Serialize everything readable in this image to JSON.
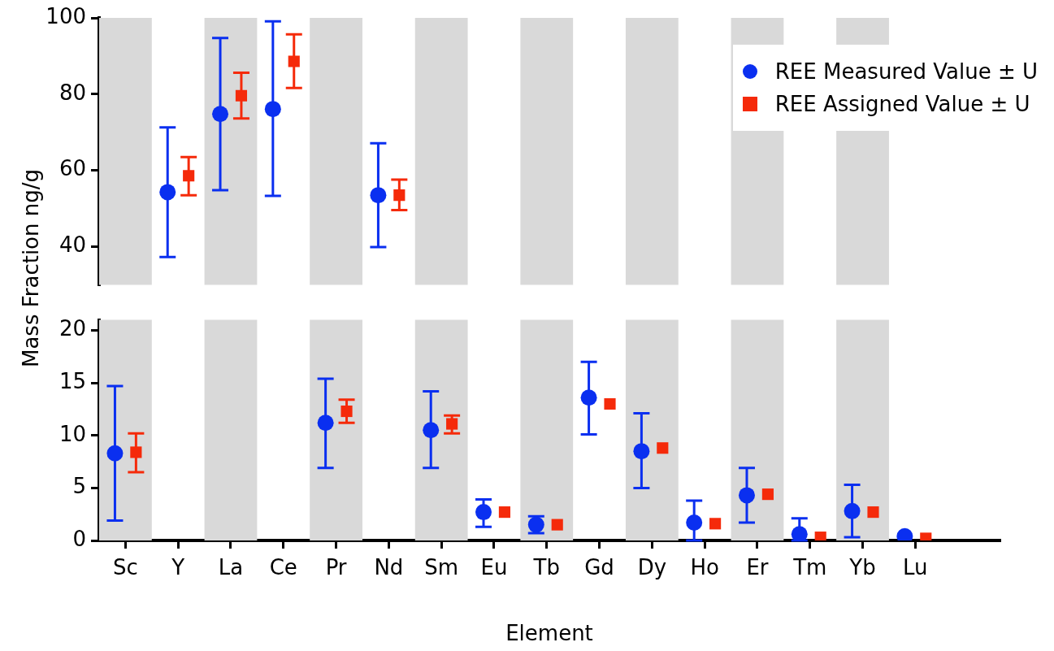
{
  "chart_data": [
    {
      "type": "scatter",
      "categories": [
        "Sc",
        "Y",
        "La",
        "Ce",
        "Pr",
        "Nd",
        "Sm",
        "Eu",
        "Tb",
        "Gd",
        "Dy",
        "Ho",
        "Er",
        "Tm",
        "Yb",
        "Lu"
      ],
      "ylabel": "Mass Fraction ng/g",
      "ylim": [
        30,
        100
      ],
      "yticks": [
        40,
        60,
        80,
        100
      ],
      "tick_labels": "y",
      "grid": false,
      "legend": "top right",
      "bands": [
        {
          "axis": "x",
          "from": "Sc",
          "to": "Sc",
          "color": "#d9d9d9"
        },
        {
          "axis": "x",
          "from": "La",
          "to": "La",
          "color": "#d9d9d9"
        },
        {
          "axis": "x",
          "from": "Pr",
          "to": "Pr",
          "color": "#d9d9d9"
        },
        {
          "axis": "x",
          "from": "Sm",
          "to": "Sm",
          "color": "#d9d9d9"
        },
        {
          "axis": "x",
          "from": "Tb",
          "to": "Tb",
          "color": "#d9d9d9"
        },
        {
          "axis": "x",
          "from": "Dy",
          "to": "Dy",
          "color": "#d9d9d9"
        },
        {
          "axis": "x",
          "from": "Er",
          "to": "Er",
          "color": "#d9d9d9"
        },
        {
          "axis": "x",
          "from": "Yb",
          "to": "Yb",
          "color": "#d9d9d9"
        }
      ],
      "series": [
        {
          "name": "REE Measured Value ± U",
          "color": "#0a2ff0",
          "marker": "circle",
          "values": [
            null,
            54.3,
            74.8,
            76.1,
            null,
            53.5,
            null,
            null,
            null,
            null,
            null,
            null,
            null,
            null,
            null,
            null
          ],
          "errors": [
            null,
            [
              37.3,
              71.3
            ],
            [
              54.8,
              94.7
            ],
            [
              53.3,
              99.1
            ],
            null,
            [
              39.9,
              67.1
            ],
            null,
            null,
            null,
            null,
            null,
            null,
            null,
            null,
            null,
            null
          ]
        },
        {
          "name": "REE Assigned Value ± U",
          "color": "#f52a0a",
          "marker": "square",
          "values": [
            null,
            58.6,
            79.6,
            88.6,
            null,
            53.5,
            null,
            null,
            null,
            null,
            null,
            null,
            null,
            null,
            null,
            null
          ],
          "errors": [
            null,
            [
              53.5,
              63.5
            ],
            [
              73.6,
              85.6
            ],
            [
              81.6,
              95.7
            ],
            null,
            [
              49.6,
              57.6
            ],
            null,
            null,
            null,
            null,
            null,
            null,
            null,
            null,
            null,
            null
          ]
        }
      ]
    },
    {
      "type": "scatter",
      "categories": [
        "Sc",
        "Y",
        "La",
        "Ce",
        "Pr",
        "Nd",
        "Sm",
        "Eu",
        "Tb",
        "Gd",
        "Dy",
        "Ho",
        "Er",
        "Tm",
        "Yb",
        "Lu"
      ],
      "xlabel": "Element",
      "ylim": [
        0,
        21
      ],
      "yticks": [
        0,
        5,
        10,
        15,
        20
      ],
      "grid": false,
      "bands": [
        {
          "axis": "x",
          "from": "Sc",
          "to": "Sc",
          "color": "#d9d9d9"
        },
        {
          "axis": "x",
          "from": "La",
          "to": "La",
          "color": "#d9d9d9"
        },
        {
          "axis": "x",
          "from": "Pr",
          "to": "Pr",
          "color": "#d9d9d9"
        },
        {
          "axis": "x",
          "from": "Sm",
          "to": "Sm",
          "color": "#d9d9d9"
        },
        {
          "axis": "x",
          "from": "Tb",
          "to": "Tb",
          "color": "#d9d9d9"
        },
        {
          "axis": "x",
          "from": "Dy",
          "to": "Dy",
          "color": "#d9d9d9"
        },
        {
          "axis": "x",
          "from": "Er",
          "to": "Er",
          "color": "#d9d9d9"
        },
        {
          "axis": "x",
          "from": "Yb",
          "to": "Yb",
          "color": "#d9d9d9"
        }
      ],
      "series": [
        {
          "color": "#0a2ff0",
          "marker": "circle",
          "values": [
            8.3,
            null,
            null,
            null,
            11.2,
            null,
            10.5,
            2.7,
            1.5,
            13.6,
            8.5,
            1.7,
            4.3,
            0.6,
            2.8,
            0.4
          ],
          "errors": [
            [
              1.9,
              14.7
            ],
            null,
            null,
            null,
            [
              6.9,
              15.4
            ],
            null,
            [
              6.9,
              14.2
            ],
            [
              1.3,
              3.9
            ],
            [
              0.7,
              2.3
            ],
            [
              10.1,
              17.0
            ],
            [
              5.0,
              12.1
            ],
            [
              0,
              3.8
            ],
            [
              1.7,
              6.9
            ],
            [
              0,
              2.1
            ],
            [
              0.3,
              5.3
            ],
            null
          ]
        },
        {
          "color": "#f52a0a",
          "marker": "square",
          "values": [
            8.4,
            null,
            null,
            null,
            12.3,
            null,
            11.1,
            2.7,
            1.5,
            13.0,
            8.8,
            1.6,
            4.4,
            0.3,
            2.7,
            0.2
          ],
          "errors": [
            [
              6.5,
              10.2
            ],
            null,
            null,
            null,
            [
              11.2,
              13.4
            ],
            null,
            [
              10.2,
              11.9
            ],
            null,
            null,
            null,
            null,
            null,
            null,
            null,
            null,
            null
          ]
        }
      ]
    }
  ]
}
